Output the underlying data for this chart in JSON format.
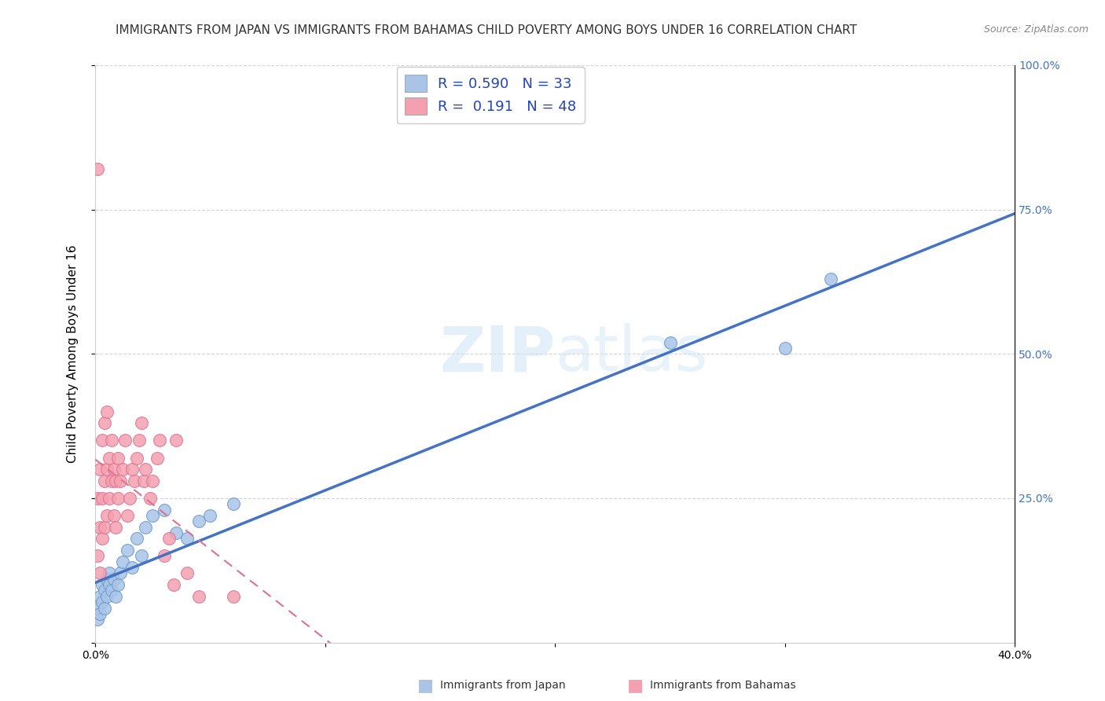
{
  "title": "IMMIGRANTS FROM JAPAN VS IMMIGRANTS FROM BAHAMAS CHILD POVERTY AMONG BOYS UNDER 16 CORRELATION CHART",
  "source": "Source: ZipAtlas.com",
  "ylabel": "Child Poverty Among Boys Under 16",
  "xlim": [
    0.0,
    0.4
  ],
  "ylim": [
    0.0,
    1.0
  ],
  "legend_entries": [
    {
      "label": "Immigrants from Japan",
      "color": "#aac4e8",
      "R": "0.590",
      "N": "33"
    },
    {
      "label": "Immigrants from Bahamas",
      "color": "#f4a0b0",
      "R": "0.191",
      "N": "48"
    }
  ],
  "japan_x": [
    0.001,
    0.001,
    0.002,
    0.002,
    0.003,
    0.003,
    0.004,
    0.004,
    0.005,
    0.005,
    0.006,
    0.006,
    0.007,
    0.008,
    0.009,
    0.01,
    0.011,
    0.012,
    0.014,
    0.016,
    0.018,
    0.02,
    0.022,
    0.025,
    0.03,
    0.035,
    0.04,
    0.045,
    0.05,
    0.06,
    0.25,
    0.3,
    0.32
  ],
  "japan_y": [
    0.04,
    0.06,
    0.05,
    0.08,
    0.07,
    0.1,
    0.06,
    0.09,
    0.08,
    0.11,
    0.1,
    0.12,
    0.09,
    0.11,
    0.08,
    0.1,
    0.12,
    0.14,
    0.16,
    0.13,
    0.18,
    0.15,
    0.2,
    0.22,
    0.23,
    0.19,
    0.18,
    0.21,
    0.22,
    0.24,
    0.52,
    0.51,
    0.63
  ],
  "bahamas_x": [
    0.001,
    0.001,
    0.001,
    0.002,
    0.002,
    0.002,
    0.003,
    0.003,
    0.003,
    0.004,
    0.004,
    0.004,
    0.005,
    0.005,
    0.005,
    0.006,
    0.006,
    0.007,
    0.007,
    0.008,
    0.008,
    0.009,
    0.009,
    0.01,
    0.01,
    0.011,
    0.012,
    0.013,
    0.014,
    0.015,
    0.016,
    0.017,
    0.018,
    0.019,
    0.02,
    0.021,
    0.022,
    0.024,
    0.025,
    0.027,
    0.028,
    0.03,
    0.032,
    0.034,
    0.035,
    0.04,
    0.045,
    0.06
  ],
  "bahamas_y": [
    0.82,
    0.25,
    0.15,
    0.3,
    0.2,
    0.12,
    0.35,
    0.25,
    0.18,
    0.38,
    0.28,
    0.2,
    0.4,
    0.3,
    0.22,
    0.32,
    0.25,
    0.35,
    0.28,
    0.3,
    0.22,
    0.28,
    0.2,
    0.32,
    0.25,
    0.28,
    0.3,
    0.35,
    0.22,
    0.25,
    0.3,
    0.28,
    0.32,
    0.35,
    0.38,
    0.28,
    0.3,
    0.25,
    0.28,
    0.32,
    0.35,
    0.15,
    0.18,
    0.1,
    0.35,
    0.12,
    0.08,
    0.08
  ],
  "japan_color": "#aac4e8",
  "bahamas_color": "#f4a0b0",
  "japan_edge": "#6699cc",
  "bahamas_edge": "#e07090",
  "regression_japan_color": "#4472c4",
  "regression_bahamas_color": "#e07090",
  "background_color": "#ffffff",
  "grid_color": "#cccccc",
  "title_fontsize": 11,
  "axis_label_fontsize": 11,
  "tick_fontsize": 10,
  "right_tick_color": "#4472c4"
}
